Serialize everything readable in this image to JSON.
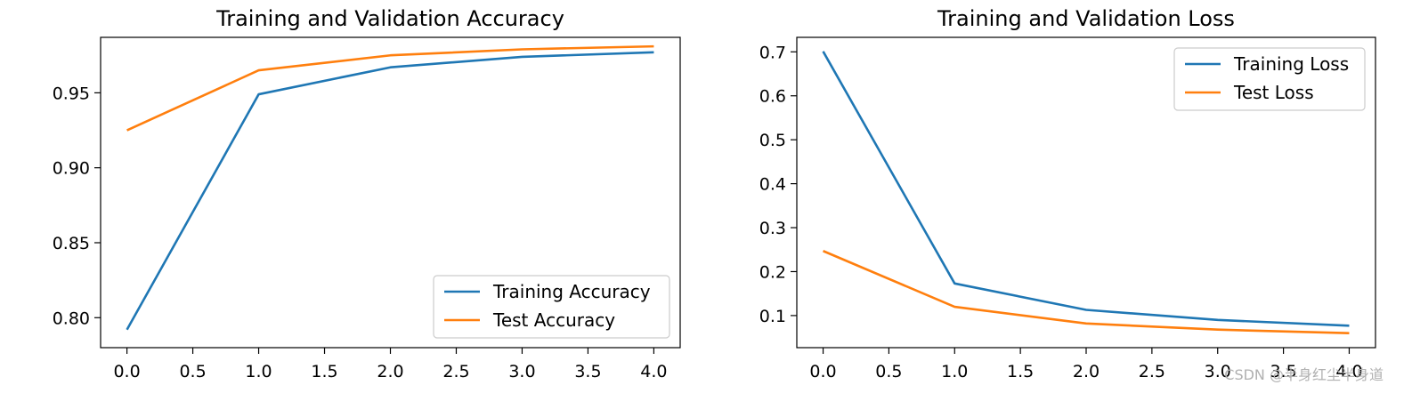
{
  "chart_data": [
    {
      "type": "line",
      "title": "Training and Validation Accuracy",
      "xlabel": "",
      "ylabel": "",
      "x": [
        0,
        1,
        2,
        3,
        4
      ],
      "xlim": [
        -0.2,
        4.2
      ],
      "ylim": [
        0.78,
        0.987
      ],
      "xticks": [
        0.0,
        0.5,
        1.0,
        1.5,
        2.0,
        2.5,
        3.0,
        3.5,
        4.0
      ],
      "xtick_labels": [
        "0.0",
        "0.5",
        "1.0",
        "1.5",
        "2.0",
        "2.5",
        "3.0",
        "3.5",
        "4.0"
      ],
      "yticks": [
        0.8,
        0.85,
        0.9,
        0.95
      ],
      "ytick_labels": [
        "0.80",
        "0.85",
        "0.90",
        "0.95"
      ],
      "legend_position": "lower right",
      "grid": false,
      "series": [
        {
          "name": "Training Accuracy",
          "color": "#1f77b4",
          "values": [
            0.792,
            0.949,
            0.967,
            0.974,
            0.977
          ]
        },
        {
          "name": "Test Accuracy",
          "color": "#ff7f0e",
          "values": [
            0.925,
            0.965,
            0.975,
            0.979,
            0.981
          ]
        }
      ]
    },
    {
      "type": "line",
      "title": "Training and Validation Loss",
      "xlabel": "",
      "ylabel": "",
      "x": [
        0,
        1,
        2,
        3,
        4
      ],
      "xlim": [
        -0.2,
        4.2
      ],
      "ylim": [
        0.027,
        0.733
      ],
      "xticks": [
        0.0,
        0.5,
        1.0,
        1.5,
        2.0,
        2.5,
        3.0,
        3.5,
        4.0
      ],
      "xtick_labels": [
        "0.0",
        "0.5",
        "1.0",
        "1.5",
        "2.0",
        "2.5",
        "3.0",
        "3.5",
        "4.0"
      ],
      "yticks": [
        0.1,
        0.2,
        0.3,
        0.4,
        0.5,
        0.6,
        0.7
      ],
      "ytick_labels": [
        "0.1",
        "0.2",
        "0.3",
        "0.4",
        "0.5",
        "0.6",
        "0.7"
      ],
      "legend_position": "upper right",
      "grid": false,
      "series": [
        {
          "name": "Training Loss",
          "color": "#1f77b4",
          "values": [
            0.701,
            0.173,
            0.113,
            0.09,
            0.077
          ]
        },
        {
          "name": "Test Loss",
          "color": "#ff7f0e",
          "values": [
            0.247,
            0.12,
            0.082,
            0.068,
            0.06
          ]
        }
      ]
    }
  ],
  "watermark": "CSDN @半身红尘半身道"
}
